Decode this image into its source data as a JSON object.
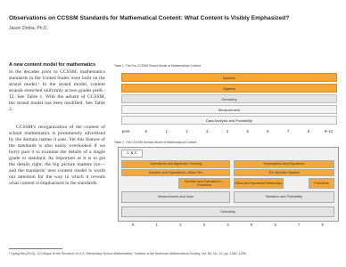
{
  "header": {
    "title": "Observations on CCSSM Standards for Mathematical Content: What Content Is Visibly Emphasized?",
    "author": "Jason Zimba, Ph.D."
  },
  "section": {
    "heading": "A new content model for mathematics",
    "paragraphs": [
      "In the decades prior to CCSSM, mathematics standards in the United States were built on the strand model.¹ In the strand model, content strands stretched uniformly across grades preK–12. See Table 1. With the advent of CCSSM, the strand model has been modified. See Table 2.",
      "CCSSM’s reorganization of the content of school mathematics is prominently advertised by the domain names it uses. Yet this feature of the standards is also easily overlooked if we hurry past it to examine the details of a single grade or standard. As important as it is to get the details right, the big picture matters too—and the standards’ new content model is worth our attention for the way in which it reveals what content is emphasized in the standards."
    ]
  },
  "table1": {
    "caption": "Table 1. The Pre-CCSSM Strand Model of Mathematical Content",
    "rows": [
      "Number",
      "Algebra",
      "Geometry",
      "Measurement",
      "Data Analysis and Probability"
    ],
    "grades": [
      "preK",
      "K",
      "1",
      "2",
      "3",
      "4",
      "5",
      "6",
      "7",
      "8",
      "9–12"
    ]
  },
  "table2": {
    "caption": "Table 2. The CCSSM Domain Model of Mathematical Content",
    "cells": [
      "C & C",
      "Operations and Algebraic Thinking",
      "Expressions and Equations",
      "Number and Operations—Base Ten",
      "The Number System",
      "Number and Operations—Fractions",
      "Ratios and Proportional Relationships",
      "Functions",
      "Measurement and Data",
      "Statistics and Probability",
      "Geometry"
    ],
    "grades": [
      "K",
      "1",
      "2",
      "3",
      "4",
      "5",
      "6",
      "7",
      "8"
    ]
  },
  "footnote": "¹ Liping Ma (2013), “A Critique of the Structure of U.S. Elementary School Mathematics,” Notices of the American Mathematical Society, Vol. 60, No. 10, pp. 1282–1296."
}
